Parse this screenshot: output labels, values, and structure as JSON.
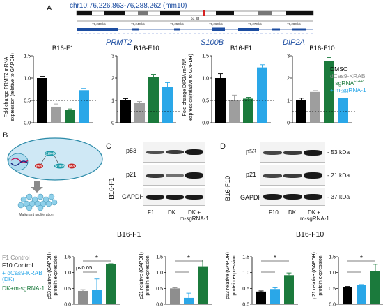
{
  "panel_letters": {
    "a": "A",
    "b": "B",
    "c": "C",
    "d": "D"
  },
  "browser": {
    "locus": "chr10:76,226,863-76,288,262 (mm10)",
    "scale_label": "61 kb",
    "ticks": [
      "76,230 kb",
      "76,240 kb",
      "76,250 kb",
      "76,260 kb",
      "76,270 kb",
      "76,280 kb"
    ]
  },
  "gene_labels": {
    "prmt2": "PRMT2",
    "s100b": "S100B",
    "dip2a": "DIP2A"
  },
  "y_labels": {
    "a_prmt2": [
      "Fold change PRMT2 mRNA",
      "expression (relative to GAPDH)"
    ],
    "a_dip2a": [
      "Fold change DIP2A mRNA",
      "expression(relative to GAPDH)"
    ],
    "p53": [
      "p53 relative (GAPDH)",
      "protein expression"
    ],
    "p21": [
      "p21 relative (GAPDH)",
      "protein expression"
    ]
  },
  "legend_a": {
    "items": [
      {
        "label": "DMSO",
        "color": "#000000"
      },
      {
        "label": "dCas9-KRAB",
        "color": "#9e9e9e"
      },
      {
        "label": "+ sgRNA",
        "sup": "EGFP",
        "color": "#1b7a3c"
      },
      {
        "label": "+ m-sgRNA-1",
        "color": "#2aa7e8"
      }
    ]
  },
  "legend_b": {
    "items": [
      {
        "label": "F1 Control",
        "color": "#8e8e8e"
      },
      {
        "label": "F10 Control",
        "color": "#000000"
      },
      {
        "label": "+ dCas9-KRAB",
        "color": "#2aa7e8"
      },
      {
        "label": "(DK)",
        "color": "#2aa7e8"
      },
      {
        "label": "DK+m-sgRNA-1",
        "color": "#1b7a3c"
      }
    ]
  },
  "panel_b_diagram": {
    "nodes": [
      "S100B",
      "p53",
      "S100B",
      "p53"
    ],
    "caption": "Malignant proliferation"
  },
  "blot_c": {
    "cell_line": "B16-F1",
    "rows": [
      "p53",
      "p21",
      "GAPDH"
    ],
    "lanes": [
      "F1",
      "DK",
      "DK +",
      "m-sgRNA-1"
    ]
  },
  "blot_d": {
    "cell_line": "B16-F10",
    "rows": [
      "p53",
      "p21",
      "GAPDH"
    ],
    "kda": [
      "- 53 kDa",
      "- 21 kDa",
      "- 37 kDa"
    ],
    "lanes": [
      "F10",
      "DK",
      "DK +",
      "m-sgRNA-1"
    ]
  },
  "group_titles": {
    "f1": "B16-F1",
    "f10": "B16-F10"
  },
  "chart_data": [
    {
      "type": "bar",
      "title": "B16-F1",
      "gene": "PRMT2",
      "ylim": [
        0,
        1.5
      ],
      "yticks": [
        "0.0",
        "0.5",
        "1.0",
        "1.5"
      ],
      "values": [
        1.0,
        0.36,
        0.29,
        0.73
      ],
      "errors": [
        0.04,
        0.06,
        0.02,
        0.04
      ],
      "colors": [
        "#000000",
        "#9e9e9e",
        "#1b7a3c",
        "#2aa7e8"
      ],
      "dashed": 0.5
    },
    {
      "type": "bar",
      "title": "B16-F10",
      "gene": "PRMT2",
      "ylim": [
        0,
        3
      ],
      "yticks": [
        "0",
        "1",
        "2",
        "3"
      ],
      "values": [
        1.0,
        0.9,
        2.05,
        1.6
      ],
      "errors": [
        0.08,
        0.05,
        0.12,
        0.2
      ],
      "colors": [
        "#000000",
        "#9e9e9e",
        "#1b7a3c",
        "#2aa7e8"
      ],
      "dashed": 0.5
    },
    {
      "type": "bar",
      "title": "B16-F1",
      "gene": "DIP2A",
      "ylim": [
        0,
        1.5
      ],
      "yticks": [
        "0.0",
        "0.5",
        "1.0",
        "1.5"
      ],
      "values": [
        1.0,
        0.5,
        0.54,
        1.24
      ],
      "errors": [
        0.1,
        0.12,
        0.03,
        0.06
      ],
      "colors": [
        "#000000",
        "#9e9e9e",
        "#1b7a3c",
        "#2aa7e8"
      ],
      "dashed": 0.5
    },
    {
      "type": "bar",
      "title": "B16-F10",
      "gene": "DIP2A",
      "ylim": [
        0,
        3
      ],
      "yticks": [
        "0",
        "1",
        "2",
        "3"
      ],
      "values": [
        1.0,
        1.38,
        2.78,
        1.12
      ],
      "errors": [
        0.1,
        0.06,
        0.14,
        0.22
      ],
      "colors": [
        "#000000",
        "#9e9e9e",
        "#1b7a3c",
        "#2aa7e8"
      ],
      "dashed": 0.5
    },
    {
      "type": "bar",
      "title": "B16-F1",
      "protein": "p53",
      "ylim": [
        0,
        1.5
      ],
      "yticks": [
        "0.0",
        "0.5",
        "1.0",
        "1.5"
      ],
      "values": [
        0.42,
        0.45,
        1.26
      ],
      "errors": [
        0.04,
        0.35,
        0.02
      ],
      "colors": [
        "#8e8e8e",
        "#2aa7e8",
        "#1b7a3c"
      ],
      "annotations": [
        "p<0.05",
        "*"
      ]
    },
    {
      "type": "bar",
      "title": "B16-F1",
      "protein": "p21",
      "ylim": [
        0,
        1.5
      ],
      "yticks": [
        "0.0",
        "0.5",
        "1.0",
        "1.5"
      ],
      "values": [
        0.5,
        0.2,
        1.2
      ],
      "errors": [
        0.02,
        0.15,
        0.2
      ],
      "colors": [
        "#8e8e8e",
        "#2aa7e8",
        "#1b7a3c"
      ],
      "annotations": [
        "*"
      ]
    },
    {
      "type": "bar",
      "title": "B16-F10",
      "protein": "p53",
      "ylim": [
        0,
        1.5
      ],
      "yticks": [
        "0.0",
        "0.5",
        "1.0",
        "1.5"
      ],
      "values": [
        0.4,
        0.48,
        0.92
      ],
      "errors": [
        0.02,
        0.04,
        0.07
      ],
      "colors": [
        "#000000",
        "#2aa7e8",
        "#1b7a3c"
      ],
      "annotations": [
        "*"
      ]
    },
    {
      "type": "bar",
      "title": "B16-F10",
      "protein": "p21",
      "ylim": [
        0,
        1.5
      ],
      "yticks": [
        "0.0",
        "0.5",
        "1.0",
        "1.5"
      ],
      "values": [
        0.54,
        0.6,
        1.04
      ],
      "errors": [
        0.02,
        0.02,
        0.22
      ],
      "colors": [
        "#000000",
        "#2aa7e8",
        "#1b7a3c"
      ],
      "annotations": [
        "*"
      ]
    }
  ]
}
